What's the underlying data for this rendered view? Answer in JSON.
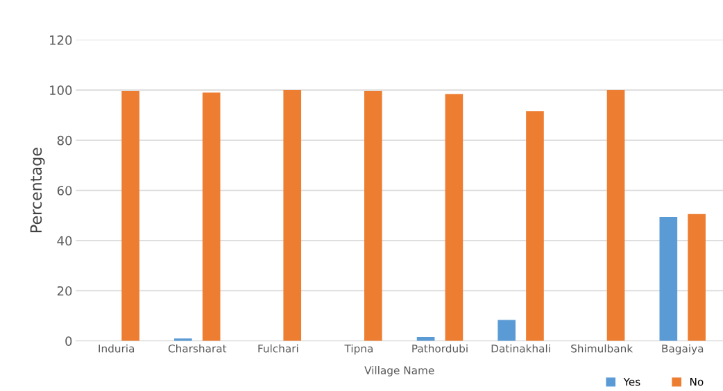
{
  "chart_data": {
    "type": "bar",
    "xlabel": "Village Name",
    "ylabel": "Percentage",
    "categories": [
      "Induria",
      "Charsharat",
      "Fulchari",
      "Tipna",
      "Pathordubi",
      "Datinakhali",
      "Shimulbank",
      "Bagaiya"
    ],
    "series": [
      {
        "name": "Yes",
        "color": "#5b9bd5",
        "values": [
          null,
          1.0,
          0,
          null,
          1.6,
          8.4,
          0,
          49.4
        ]
      },
      {
        "name": "No",
        "color": "#ed7d31",
        "values": [
          99.7,
          99.0,
          100,
          99.7,
          98.4,
          91.6,
          100,
          50.6
        ]
      }
    ],
    "ylim": [
      0,
      120
    ],
    "yticks": [
      0,
      20,
      40,
      60,
      80,
      100,
      120
    ],
    "grid": "y",
    "legend": "bottom right"
  }
}
